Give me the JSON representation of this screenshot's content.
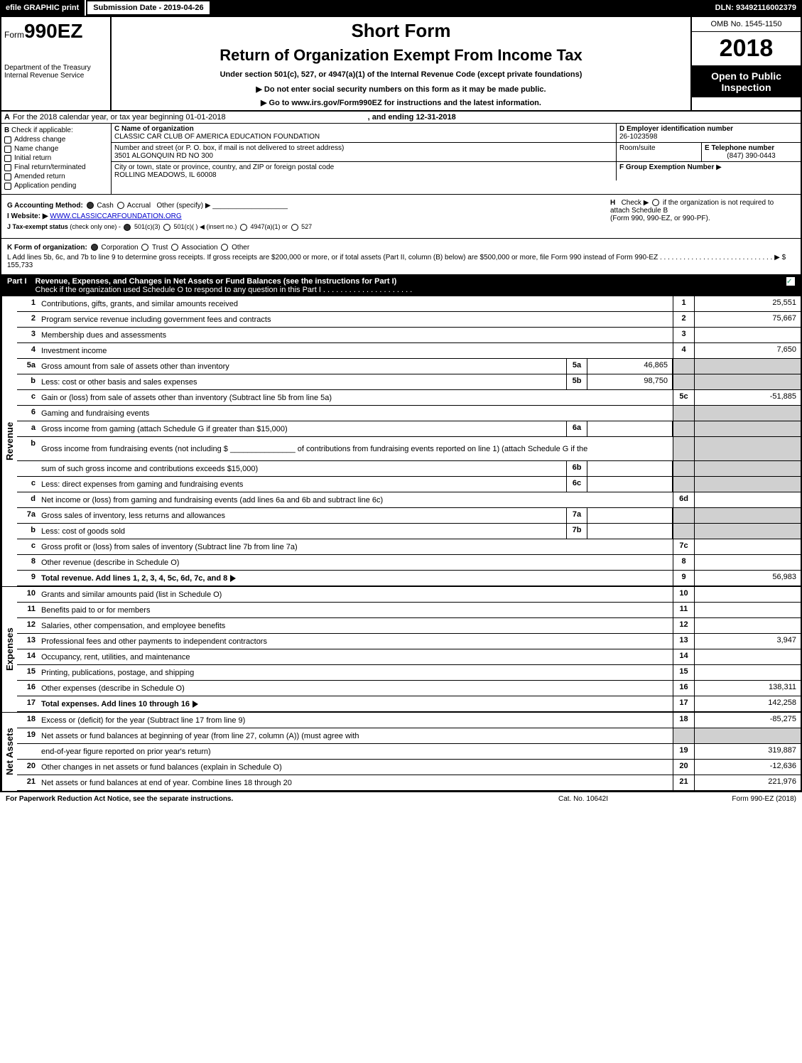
{
  "topbar": {
    "efile": "efile GRAPHIC print",
    "submission": "Submission Date - 2019-04-26",
    "dln": "DLN: 93492116002379"
  },
  "header": {
    "form_prefix": "Form",
    "form_num": "990EZ",
    "short_form": "Short Form",
    "title": "Return of Organization Exempt From Income Tax",
    "under": "Under section 501(c), 527, or 4947(a)(1) of the Internal Revenue Code (except private foundations)",
    "do_not": "▶ Do not enter social security numbers on this form as it may be made public.",
    "go_to": "▶ Go to www.irs.gov/Form990EZ for instructions and the latest information.",
    "dept": "Department of the Treasury",
    "irs": "Internal Revenue Service",
    "omb": "OMB No. 1545-1150",
    "year": "2018",
    "open": "Open to Public Inspection"
  },
  "row_a": {
    "label": "A",
    "text": "For the 2018 calendar year, or tax year beginning 01-01-2018",
    "ending": ", and ending 12-31-2018"
  },
  "section_b": {
    "label": "B",
    "check_if": "Check if applicable:",
    "items": [
      "Address change",
      "Name change",
      "Initial return",
      "Final return/terminated",
      "Amended return",
      "Application pending"
    ]
  },
  "section_c": {
    "c_label": "C Name of organization",
    "org_name": "CLASSIC CAR CLUB OF AMERICA EDUCATION FOUNDATION",
    "street_label": "Number and street (or P. O. box, if mail is not delivered to street address)",
    "street": "3501 ALGONQUIN RD NO 300",
    "room_label": "Room/suite",
    "city_label": "City or town, state or province, country, and ZIP or foreign postal code",
    "city": "ROLLING MEADOWS, IL  60008"
  },
  "section_d": {
    "d_label": "D Employer identification number",
    "ein": "26-1023598",
    "e_label": "E Telephone number",
    "phone": "(847) 390-0443",
    "f_label": "F Group Exemption Number",
    "f_arrow": "▶"
  },
  "section_g": {
    "g_label": "G Accounting Method:",
    "cash": "Cash",
    "accrual": "Accrual",
    "other": "Other (specify) ▶",
    "h_label": "H",
    "h_check": "Check ▶",
    "h_text1": "if the organization is not required to attach Schedule B",
    "h_text2": "(Form 990, 990-EZ, or 990-PF).",
    "i_label": "I Website: ▶",
    "website": "WWW.CLASSICCARFOUNDATION.ORG"
  },
  "section_j": {
    "j_label": "J Tax-exempt status",
    "j_text": "(check only one) -",
    "j_501c3": "501(c)(3)",
    "j_501c": "501(c)( )",
    "j_insert": "◀ (insert no.)",
    "j_4947": "4947(a)(1) or",
    "j_527": "527"
  },
  "section_k": {
    "k_label": "K Form of organization:",
    "corp": "Corporation",
    "trust": "Trust",
    "assoc": "Association",
    "other": "Other"
  },
  "section_l": {
    "l_text": "L Add lines 5b, 6c, and 7b to line 9 to determine gross receipts. If gross receipts are $200,000 or more, or if total assets (Part II, column (B) below) are $500,000 or more, file Form 990 instead of Form 990-EZ",
    "l_amount": "▶ $ 155,733"
  },
  "part1": {
    "num": "Part I",
    "title": "Revenue, Expenses, and Changes in Net Assets or Fund Balances (see the instructions for Part I)",
    "check_text": "Check if the organization used Schedule O to respond to any question in this Part I"
  },
  "side_labels": {
    "revenue": "Revenue",
    "expenses": "Expenses",
    "netassets": "Net Assets"
  },
  "rows": [
    {
      "n": "1",
      "desc": "Contributions, gifts, grants, and similar amounts received",
      "ln": "1",
      "val": "25,551"
    },
    {
      "n": "2",
      "desc": "Program service revenue including government fees and contracts",
      "ln": "2",
      "val": "75,667"
    },
    {
      "n": "3",
      "desc": "Membership dues and assessments",
      "ln": "3",
      "val": ""
    },
    {
      "n": "4",
      "desc": "Investment income",
      "ln": "4",
      "val": "7,650"
    },
    {
      "n": "5a",
      "desc": "Gross amount from sale of assets other than inventory",
      "sub": "5a",
      "subval": "46,865",
      "grey": true
    },
    {
      "n": "b",
      "desc": "Less: cost or other basis and sales expenses",
      "sub": "5b",
      "subval": "98,750",
      "grey": true
    },
    {
      "n": "c",
      "desc": "Gain or (loss) from sale of assets other than inventory (Subtract line 5b from line 5a)",
      "ln": "5c",
      "val": "-51,885"
    },
    {
      "n": "6",
      "desc": "Gaming and fundraising events",
      "grey": true,
      "novals": true
    },
    {
      "n": "a",
      "desc": "Gross income from gaming (attach Schedule G if greater than $15,000)",
      "sub": "6a",
      "subval": "",
      "grey": true
    },
    {
      "n": "b",
      "desc": "Gross income from fundraising events (not including $ _______________ of contributions from fundraising events reported on line 1) (attach Schedule G if the",
      "grey": true,
      "novals": true,
      "tall": true
    },
    {
      "n": "",
      "desc": "sum of such gross income and contributions exceeds $15,000)",
      "sub": "6b",
      "subval": "",
      "grey": true
    },
    {
      "n": "c",
      "desc": "Less: direct expenses from gaming and fundraising events",
      "sub": "6c",
      "subval": "",
      "grey": true
    },
    {
      "n": "d",
      "desc": "Net income or (loss) from gaming and fundraising events (add lines 6a and 6b and subtract line 6c)",
      "ln": "6d",
      "val": ""
    },
    {
      "n": "7a",
      "desc": "Gross sales of inventory, less returns and allowances",
      "sub": "7a",
      "subval": "",
      "grey": true
    },
    {
      "n": "b",
      "desc": "Less: cost of goods sold",
      "sub": "7b",
      "subval": "",
      "grey": true
    },
    {
      "n": "c",
      "desc": "Gross profit or (loss) from sales of inventory (Subtract line 7b from line 7a)",
      "ln": "7c",
      "val": ""
    },
    {
      "n": "8",
      "desc": "Other revenue (describe in Schedule O)",
      "ln": "8",
      "val": ""
    },
    {
      "n": "9",
      "desc": "Total revenue. Add lines 1, 2, 3, 4, 5c, 6d, 7c, and 8",
      "ln": "9",
      "val": "56,983",
      "bold": true,
      "arrow": true
    }
  ],
  "exp_rows": [
    {
      "n": "10",
      "desc": "Grants and similar amounts paid (list in Schedule O)",
      "ln": "10",
      "val": ""
    },
    {
      "n": "11",
      "desc": "Benefits paid to or for members",
      "ln": "11",
      "val": ""
    },
    {
      "n": "12",
      "desc": "Salaries, other compensation, and employee benefits",
      "ln": "12",
      "val": ""
    },
    {
      "n": "13",
      "desc": "Professional fees and other payments to independent contractors",
      "ln": "13",
      "val": "3,947"
    },
    {
      "n": "14",
      "desc": "Occupancy, rent, utilities, and maintenance",
      "ln": "14",
      "val": ""
    },
    {
      "n": "15",
      "desc": "Printing, publications, postage, and shipping",
      "ln": "15",
      "val": ""
    },
    {
      "n": "16",
      "desc": "Other expenses (describe in Schedule O)",
      "ln": "16",
      "val": "138,311"
    },
    {
      "n": "17",
      "desc": "Total expenses. Add lines 10 through 16",
      "ln": "17",
      "val": "142,258",
      "bold": true,
      "arrow": true
    }
  ],
  "na_rows": [
    {
      "n": "18",
      "desc": "Excess or (deficit) for the year (Subtract line 17 from line 9)",
      "ln": "18",
      "val": "-85,275"
    },
    {
      "n": "19",
      "desc": "Net assets or fund balances at beginning of year (from line 27, column (A)) (must agree with",
      "grey": true,
      "novals": true
    },
    {
      "n": "",
      "desc": "end-of-year figure reported on prior year's return)",
      "ln": "19",
      "val": "319,887"
    },
    {
      "n": "20",
      "desc": "Other changes in net assets or fund balances (explain in Schedule O)",
      "ln": "20",
      "val": "-12,636"
    },
    {
      "n": "21",
      "desc": "Net assets or fund balances at end of year. Combine lines 18 through 20",
      "ln": "21",
      "val": "221,976"
    }
  ],
  "footer": {
    "left": "For Paperwork Reduction Act Notice, see the separate instructions.",
    "mid": "Cat. No. 10642I",
    "right": "Form 990-EZ (2018)"
  },
  "colors": {
    "black": "#000000",
    "white": "#ffffff",
    "grey": "#d0d0d0",
    "link": "#0000cc"
  }
}
